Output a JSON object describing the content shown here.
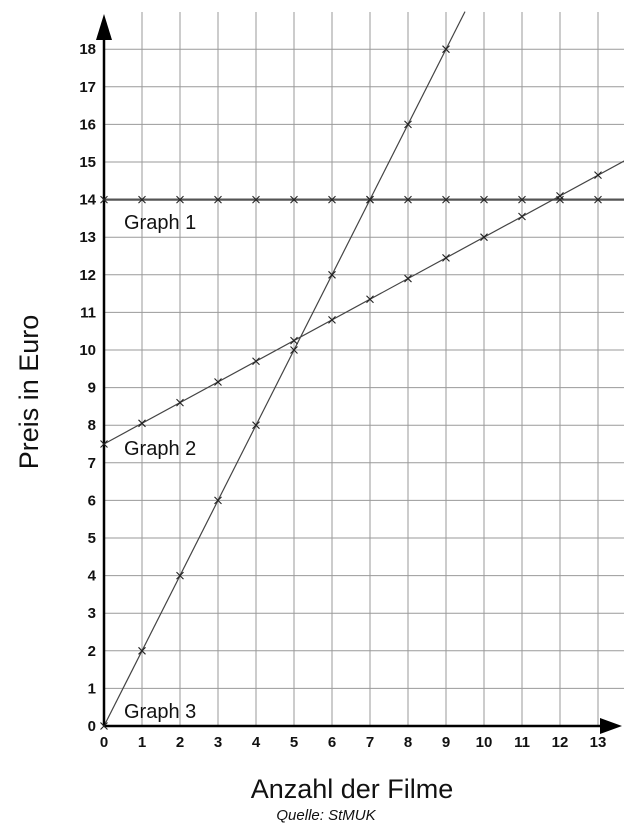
{
  "chart_data": {
    "type": "line",
    "xlabel": "Anzahl der Filme",
    "ylabel": "Preis in Euro",
    "source": "Quelle: StMUK",
    "xlim": [
      0,
      13.8
    ],
    "ylim": [
      0,
      18.8
    ],
    "grid": true,
    "x_ticks": [
      "0",
      "1",
      "2",
      "3",
      "4",
      "5",
      "6",
      "7",
      "8",
      "9",
      "10",
      "11",
      "12",
      "13"
    ],
    "y_ticks": [
      "0",
      "1",
      "2",
      "3",
      "4",
      "5",
      "6",
      "7",
      "8",
      "9",
      "10",
      "11",
      "12",
      "13",
      "14",
      "15",
      "16",
      "17",
      "18"
    ],
    "series": [
      {
        "name": "Graph 1",
        "x": [
          0,
          1,
          2,
          3,
          4,
          5,
          6,
          7,
          8,
          9,
          10,
          11,
          12,
          13
        ],
        "y": [
          14,
          14,
          14,
          14,
          14,
          14,
          14,
          14,
          14,
          14,
          14,
          14,
          14,
          14
        ],
        "line_x": [
          0,
          13.8
        ]
      },
      {
        "name": "Graph 2",
        "x": [
          0,
          1,
          2,
          3,
          4,
          5,
          6,
          7,
          8,
          9,
          10,
          11,
          12,
          13
        ],
        "y": [
          7.5,
          8.05,
          8.6,
          9.15,
          9.7,
          10.25,
          10.8,
          11.35,
          11.9,
          12.45,
          13,
          13.55,
          14.1,
          14.65
        ],
        "line_x": [
          0,
          13.8
        ]
      },
      {
        "name": "Graph 3",
        "x": [
          0,
          1,
          2,
          3,
          4,
          5,
          6,
          7,
          8,
          9
        ],
        "y": [
          0,
          2,
          4,
          6,
          8,
          10,
          12,
          14,
          16,
          18
        ],
        "line_x": [
          0,
          9.5
        ]
      }
    ]
  }
}
